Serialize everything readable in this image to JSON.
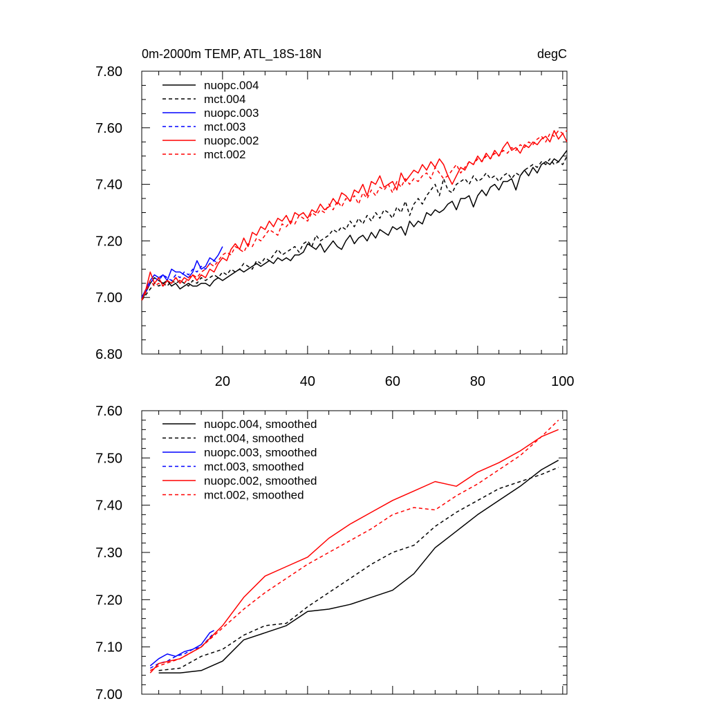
{
  "chart_data": [
    {
      "type": "line",
      "title_left": "0m-2000m TEMP, ATL_18S-18N",
      "title_right": "degC",
      "xlim": [
        1,
        101
      ],
      "ylim": [
        6.8,
        7.8
      ],
      "x_ticks": [
        20,
        40,
        60,
        80,
        100
      ],
      "x_tick_labels": [
        "20",
        "40",
        "60",
        "80",
        "100"
      ],
      "y_ticks": [
        6.8,
        7.0,
        7.2,
        7.4,
        7.6,
        7.8
      ],
      "y_tick_labels": [
        "6.80",
        "7.00",
        "7.20",
        "7.40",
        "7.60",
        "7.80"
      ],
      "legend": [
        "nuopc.004",
        "mct.004",
        "nuopc.003",
        "mct.003",
        "nuopc.002",
        "mct.002"
      ],
      "series": [
        {
          "name": "nuopc.004",
          "color": "#000000",
          "dash": "solid",
          "x_start": 1,
          "values": [
            6.99,
            7.02,
            7.05,
            7.07,
            7.06,
            7.05,
            7.06,
            7.04,
            7.05,
            7.03,
            7.04,
            7.05,
            7.04,
            7.04,
            7.05,
            7.05,
            7.04,
            7.06,
            7.07,
            7.06,
            7.07,
            7.08,
            7.09,
            7.1,
            7.09,
            7.1,
            7.11,
            7.12,
            7.11,
            7.12,
            7.13,
            7.12,
            7.14,
            7.13,
            7.14,
            7.13,
            7.15,
            7.15,
            7.16,
            7.19,
            7.18,
            7.17,
            7.19,
            7.16,
            7.18,
            7.2,
            7.18,
            7.17,
            7.2,
            7.22,
            7.19,
            7.21,
            7.22,
            7.2,
            7.23,
            7.21,
            7.24,
            7.23,
            7.22,
            7.25,
            7.24,
            7.25,
            7.22,
            7.27,
            7.25,
            7.27,
            7.26,
            7.3,
            7.29,
            7.31,
            7.3,
            7.31,
            7.33,
            7.34,
            7.31,
            7.35,
            7.35,
            7.36,
            7.32,
            7.36,
            7.38,
            7.36,
            7.39,
            7.4,
            7.38,
            7.41,
            7.41,
            7.42,
            7.38,
            7.43,
            7.45,
            7.43,
            7.46,
            7.44,
            7.47,
            7.48,
            7.47,
            7.49,
            7.48,
            7.5,
            7.52
          ]
        },
        {
          "name": "mct.004",
          "color": "#000000",
          "dash": "dashed",
          "x_start": 1,
          "values": [
            6.99,
            7.01,
            7.03,
            7.05,
            7.04,
            7.05,
            7.04,
            7.06,
            7.05,
            7.06,
            7.05,
            7.04,
            7.06,
            7.05,
            7.07,
            7.06,
            7.07,
            7.08,
            7.07,
            7.09,
            7.08,
            7.1,
            7.09,
            7.1,
            7.12,
            7.11,
            7.1,
            7.13,
            7.12,
            7.14,
            7.13,
            7.15,
            7.17,
            7.15,
            7.16,
            7.17,
            7.18,
            7.16,
            7.19,
            7.2,
            7.18,
            7.22,
            7.2,
            7.21,
            7.22,
            7.24,
            7.23,
            7.25,
            7.24,
            7.27,
            7.25,
            7.28,
            7.26,
            7.29,
            7.27,
            7.3,
            7.28,
            7.31,
            7.3,
            7.28,
            7.32,
            7.3,
            7.34,
            7.29,
            7.33,
            7.35,
            7.33,
            7.36,
            7.38,
            7.4,
            7.36,
            7.42,
            7.38,
            7.37,
            7.4,
            7.41,
            7.42,
            7.4,
            7.43,
            7.41,
            7.42,
            7.44,
            7.42,
            7.43,
            7.41,
            7.43,
            7.44,
            7.42,
            7.44,
            7.43,
            7.45,
            7.46,
            7.47,
            7.46,
            7.48,
            7.47,
            7.49,
            7.47,
            7.48,
            7.47,
            7.5
          ]
        },
        {
          "name": "nuopc.003",
          "color": "#0000ff",
          "dash": "solid",
          "x_start": 1,
          "values": [
            7.0,
            7.03,
            7.06,
            7.08,
            7.07,
            7.08,
            7.06,
            7.1,
            7.09,
            7.09,
            7.08,
            7.07,
            7.09,
            7.13,
            7.1,
            7.11,
            7.14,
            7.13,
            7.15,
            7.18
          ]
        },
        {
          "name": "mct.003",
          "color": "#0000ff",
          "dash": "dashed",
          "x_start": 1,
          "values": [
            7.0,
            7.02,
            7.05,
            7.07,
            7.06,
            7.08,
            7.07,
            7.06,
            7.08,
            7.07,
            7.09,
            7.08,
            7.1,
            7.09,
            7.11,
            7.1,
            7.12,
            7.13,
            7.12,
            7.14
          ]
        },
        {
          "name": "nuopc.002",
          "color": "#ff0000",
          "dash": "solid",
          "x_start": 1,
          "values": [
            6.99,
            7.03,
            7.09,
            7.05,
            7.07,
            7.04,
            7.06,
            7.05,
            7.07,
            7.05,
            7.07,
            7.06,
            7.08,
            7.06,
            7.08,
            7.07,
            7.1,
            7.09,
            7.12,
            7.14,
            7.13,
            7.17,
            7.19,
            7.17,
            7.21,
            7.18,
            7.23,
            7.22,
            7.25,
            7.24,
            7.27,
            7.25,
            7.28,
            7.27,
            7.29,
            7.26,
            7.3,
            7.29,
            7.3,
            7.28,
            7.31,
            7.3,
            7.33,
            7.31,
            7.32,
            7.35,
            7.33,
            7.37,
            7.36,
            7.34,
            7.38,
            7.37,
            7.4,
            7.36,
            7.41,
            7.4,
            7.43,
            7.39,
            7.4,
            7.41,
            7.38,
            7.44,
            7.41,
            7.43,
            7.45,
            7.44,
            7.47,
            7.45,
            7.48,
            7.46,
            7.49,
            7.47,
            7.43,
            7.4,
            7.43,
            7.46,
            7.45,
            7.48,
            7.47,
            7.5,
            7.48,
            7.51,
            7.49,
            7.52,
            7.5,
            7.53,
            7.55,
            7.52,
            7.53,
            7.51,
            7.54,
            7.53,
            7.55,
            7.54,
            7.56,
            7.57,
            7.55,
            7.59,
            7.56,
            7.58,
            7.55
          ]
        },
        {
          "name": "mct.002",
          "color": "#ff0000",
          "dash": "dashed",
          "x_start": 1,
          "values": [
            6.99,
            7.02,
            7.06,
            7.04,
            7.05,
            7.04,
            7.06,
            7.05,
            7.07,
            7.06,
            7.05,
            7.07,
            7.08,
            7.07,
            7.09,
            7.1,
            7.12,
            7.11,
            7.13,
            7.15,
            7.16,
            7.15,
            7.18,
            7.17,
            7.16,
            7.19,
            7.18,
            7.21,
            7.2,
            7.22,
            7.24,
            7.23,
            7.22,
            7.26,
            7.25,
            7.27,
            7.26,
            7.29,
            7.28,
            7.27,
            7.3,
            7.29,
            7.31,
            7.3,
            7.33,
            7.31,
            7.34,
            7.32,
            7.35,
            7.34,
            7.36,
            7.33,
            7.37,
            7.35,
            7.38,
            7.36,
            7.39,
            7.38,
            7.4,
            7.37,
            7.41,
            7.39,
            7.42,
            7.4,
            7.42,
            7.41,
            7.43,
            7.44,
            7.42,
            7.46,
            7.44,
            7.42,
            7.43,
            7.45,
            7.47,
            7.44,
            7.46,
            7.48,
            7.47,
            7.49,
            7.48,
            7.5,
            7.49,
            7.51,
            7.5,
            7.52,
            7.51,
            7.53,
            7.52,
            7.54,
            7.53,
            7.55,
            7.54,
            7.56,
            7.57,
            7.55,
            7.58,
            7.57,
            7.59,
            7.58,
            7.59
          ]
        }
      ]
    },
    {
      "type": "line",
      "xlim": [
        1,
        101
      ],
      "ylim": [
        7.0,
        7.6
      ],
      "x_ticks": [
        20,
        40,
        60,
        80,
        100
      ],
      "y_ticks": [
        7.0,
        7.1,
        7.2,
        7.3,
        7.4,
        7.5,
        7.6
      ],
      "y_tick_labels": [
        "7.00",
        "7.10",
        "7.20",
        "7.30",
        "7.40",
        "7.50",
        "7.60"
      ],
      "legend": [
        "nuopc.004, smoothed",
        "mct.004, smoothed",
        "nuopc.003, smoothed",
        "mct.003, smoothed",
        "nuopc.002, smoothed",
        "mct.002, smoothed"
      ],
      "series": [
        {
          "name": "nuopc.004, smoothed",
          "color": "#000000",
          "dash": "solid",
          "x": [
            5,
            10,
            15,
            20,
            25,
            30,
            35,
            40,
            45,
            50,
            55,
            60,
            65,
            70,
            75,
            80,
            85,
            90,
            95,
            99
          ],
          "values": [
            7.045,
            7.045,
            7.05,
            7.07,
            7.115,
            7.13,
            7.145,
            7.175,
            7.18,
            7.19,
            7.205,
            7.22,
            7.255,
            7.31,
            7.345,
            7.38,
            7.41,
            7.44,
            7.475,
            7.495
          ]
        },
        {
          "name": "mct.004, smoothed",
          "color": "#000000",
          "dash": "dashed",
          "x": [
            5,
            10,
            15,
            20,
            25,
            30,
            35,
            40,
            45,
            50,
            55,
            60,
            65,
            70,
            75,
            80,
            85,
            90,
            95,
            99
          ],
          "values": [
            7.05,
            7.055,
            7.08,
            7.095,
            7.125,
            7.145,
            7.15,
            7.185,
            7.215,
            7.245,
            7.275,
            7.3,
            7.315,
            7.355,
            7.385,
            7.41,
            7.435,
            7.45,
            7.465,
            7.48
          ]
        },
        {
          "name": "nuopc.003, smoothed",
          "color": "#0000ff",
          "dash": "solid",
          "x": [
            3,
            5,
            7,
            9,
            11,
            13,
            15,
            17,
            18
          ],
          "values": [
            7.06,
            7.075,
            7.085,
            7.08,
            7.09,
            7.095,
            7.105,
            7.13,
            7.135
          ]
        },
        {
          "name": "mct.003, smoothed",
          "color": "#0000ff",
          "dash": "dashed",
          "x": [
            3,
            5,
            7,
            9,
            11,
            13,
            15,
            17,
            18
          ],
          "values": [
            7.055,
            7.065,
            7.07,
            7.08,
            7.085,
            7.095,
            7.1,
            7.12,
            7.13
          ]
        },
        {
          "name": "nuopc.002, smoothed",
          "color": "#ff0000",
          "dash": "solid",
          "x": [
            3,
            5,
            10,
            15,
            20,
            25,
            30,
            35,
            40,
            45,
            50,
            55,
            60,
            65,
            70,
            75,
            80,
            85,
            90,
            95,
            99
          ],
          "values": [
            7.045,
            7.065,
            7.075,
            7.1,
            7.145,
            7.205,
            7.25,
            7.27,
            7.29,
            7.33,
            7.36,
            7.385,
            7.41,
            7.43,
            7.45,
            7.44,
            7.47,
            7.49,
            7.515,
            7.545,
            7.56
          ]
        },
        {
          "name": "mct.002, smoothed",
          "color": "#ff0000",
          "dash": "dashed",
          "x": [
            3,
            5,
            10,
            15,
            20,
            25,
            30,
            35,
            40,
            45,
            50,
            55,
            60,
            65,
            70,
            75,
            80,
            85,
            90,
            95,
            99
          ],
          "values": [
            7.05,
            7.06,
            7.075,
            7.1,
            7.14,
            7.18,
            7.215,
            7.245,
            7.275,
            7.3,
            7.325,
            7.35,
            7.38,
            7.395,
            7.39,
            7.42,
            7.445,
            7.475,
            7.505,
            7.545,
            7.58
          ]
        }
      ]
    }
  ]
}
